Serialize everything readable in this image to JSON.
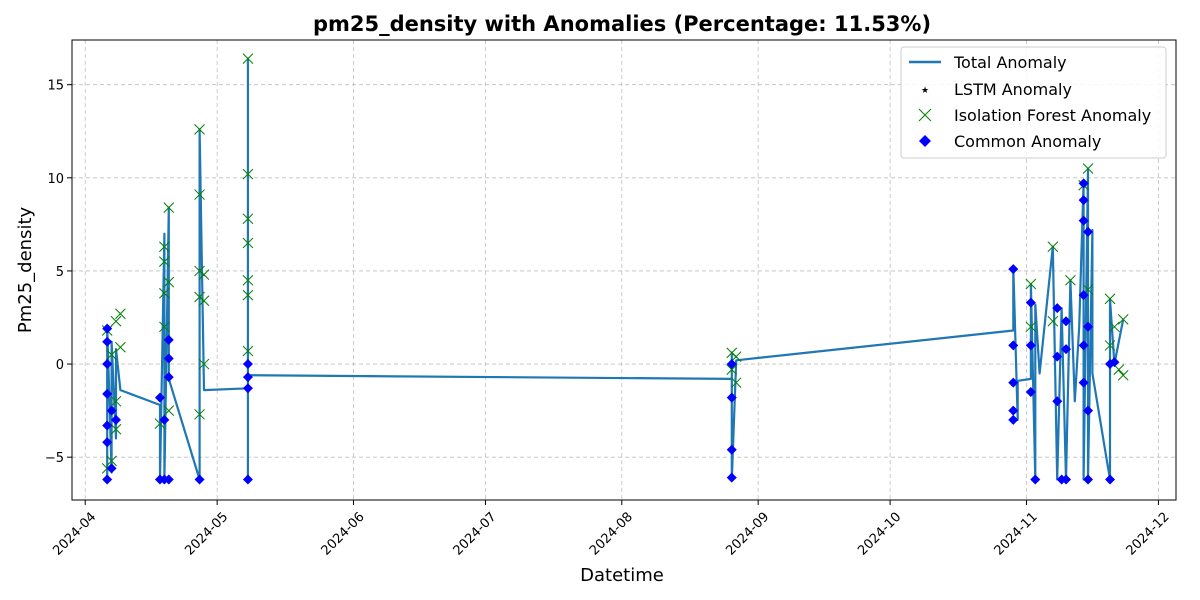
{
  "colors": {
    "total_line": "#1f77b4",
    "lstm": "#ff0000",
    "isolation_forest": "#008000",
    "common": "#0000ff",
    "grid": "#b0b0b0"
  },
  "chart_data": {
    "type": "line",
    "title": "pm25_density with Anomalies (Percentage: 11.53%)",
    "xlabel": "Datetime",
    "ylabel": "Pm25_density",
    "x_axis_type": "date",
    "xlim": [
      "2024-03-29",
      "2024-12-05"
    ],
    "ylim": [
      -7.3,
      17.4
    ],
    "x_ticks": [
      "2024-04",
      "2024-05",
      "2024-06",
      "2024-07",
      "2024-08",
      "2024-09",
      "2024-10",
      "2024-11",
      "2024-12"
    ],
    "y_ticks": [
      -5,
      0,
      5,
      10,
      15
    ],
    "grid": true,
    "legend_position": "top-right",
    "legend": [
      "Total Anomaly",
      "LSTM Anomaly",
      "Isolation Forest Anomaly",
      "Common Anomaly"
    ],
    "series": [
      {
        "name": "Total Anomaly",
        "style": "line",
        "points": [
          [
            "2024-04-06",
            -6.2
          ],
          [
            "2024-04-06",
            2.0
          ],
          [
            "2024-04-07",
            -5.8
          ],
          [
            "2024-04-07",
            1.2
          ],
          [
            "2024-04-08",
            -4.0
          ],
          [
            "2024-04-08",
            0.8
          ],
          [
            "2024-04-09",
            -1.4
          ],
          [
            "2024-04-18",
            -2.2
          ],
          [
            "2024-04-18",
            -6.2
          ],
          [
            "2024-04-19",
            7.0
          ],
          [
            "2024-04-19",
            -6.2
          ],
          [
            "2024-04-20",
            8.4
          ],
          [
            "2024-04-20",
            -0.8
          ],
          [
            "2024-04-27",
            -6.2
          ],
          [
            "2024-04-27",
            12.6
          ],
          [
            "2024-04-28",
            -1.4
          ],
          [
            "2024-05-08",
            -1.3
          ],
          [
            "2024-05-08",
            16.4
          ],
          [
            "2024-05-08",
            -6.2
          ],
          [
            "2024-05-08",
            -0.6
          ],
          [
            "2024-08-26",
            -0.8
          ],
          [
            "2024-08-26",
            0.5
          ],
          [
            "2024-08-26",
            -6.2
          ],
          [
            "2024-08-27",
            0.2
          ],
          [
            "2024-10-29",
            1.8
          ],
          [
            "2024-10-29",
            5.2
          ],
          [
            "2024-10-30",
            -3.0
          ],
          [
            "2024-10-30",
            -0.9
          ],
          [
            "2024-11-02",
            -0.8
          ],
          [
            "2024-11-02",
            4.3
          ],
          [
            "2024-11-03",
            -6.2
          ],
          [
            "2024-11-03",
            3.2
          ],
          [
            "2024-11-04",
            -0.5
          ],
          [
            "2024-11-07",
            6.3
          ],
          [
            "2024-11-08",
            -6.2
          ],
          [
            "2024-11-09",
            3.0
          ],
          [
            "2024-11-10",
            -6.2
          ],
          [
            "2024-11-11",
            4.5
          ],
          [
            "2024-11-12",
            -2.0
          ],
          [
            "2024-11-13",
            2.0
          ],
          [
            "2024-11-14",
            9.8
          ],
          [
            "2024-11-14",
            -6.2
          ],
          [
            "2024-11-15",
            10.5
          ],
          [
            "2024-11-15",
            -6.2
          ],
          [
            "2024-11-16",
            7.2
          ],
          [
            "2024-11-16",
            -0.5
          ],
          [
            "2024-11-20",
            -6.2
          ],
          [
            "2024-11-20",
            3.5
          ],
          [
            "2024-11-21",
            0.0
          ],
          [
            "2024-11-23",
            2.4
          ]
        ]
      },
      {
        "name": "LSTM Anomaly",
        "style": "marker",
        "points": []
      },
      {
        "name": "Isolation Forest Anomaly",
        "style": "marker",
        "points": [
          [
            "2024-04-06",
            1.8
          ],
          [
            "2024-04-06",
            -5.6
          ],
          [
            "2024-04-07",
            -5.2
          ],
          [
            "2024-04-07",
            0.5
          ],
          [
            "2024-04-08",
            -3.5
          ],
          [
            "2024-04-08",
            -2.0
          ],
          [
            "2024-04-08",
            2.3
          ],
          [
            "2024-04-09",
            0.9
          ],
          [
            "2024-04-09",
            2.7
          ],
          [
            "2024-04-18",
            -3.2
          ],
          [
            "2024-04-19",
            2.0
          ],
          [
            "2024-04-19",
            3.8
          ],
          [
            "2024-04-19",
            5.5
          ],
          [
            "2024-04-19",
            6.3
          ],
          [
            "2024-04-20",
            8.4
          ],
          [
            "2024-04-20",
            4.4
          ],
          [
            "2024-04-20",
            -2.5
          ],
          [
            "2024-04-27",
            12.6
          ],
          [
            "2024-04-27",
            9.1
          ],
          [
            "2024-04-27",
            5.0
          ],
          [
            "2024-04-27",
            3.6
          ],
          [
            "2024-04-28",
            4.8
          ],
          [
            "2024-04-28",
            3.4
          ],
          [
            "2024-04-28",
            0.0
          ],
          [
            "2024-04-27",
            -2.7
          ],
          [
            "2024-05-08",
            16.4
          ],
          [
            "2024-05-08",
            10.2
          ],
          [
            "2024-05-08",
            7.8
          ],
          [
            "2024-05-08",
            6.5
          ],
          [
            "2024-05-08",
            4.5
          ],
          [
            "2024-05-08",
            3.7
          ],
          [
            "2024-05-08",
            0.7
          ],
          [
            "2024-08-26",
            0.6
          ],
          [
            "2024-08-26",
            -0.3
          ],
          [
            "2024-08-27",
            0.4
          ],
          [
            "2024-08-27",
            -1.0
          ],
          [
            "2024-11-02",
            4.3
          ],
          [
            "2024-11-02",
            2.0
          ],
          [
            "2024-11-07",
            6.3
          ],
          [
            "2024-11-07",
            2.3
          ],
          [
            "2024-11-11",
            4.5
          ],
          [
            "2024-11-14",
            9.6
          ],
          [
            "2024-11-15",
            10.5
          ],
          [
            "2024-11-15",
            4.0
          ],
          [
            "2024-11-20",
            3.5
          ],
          [
            "2024-11-20",
            1.0
          ],
          [
            "2024-11-21",
            2.0
          ],
          [
            "2024-11-23",
            2.4
          ],
          [
            "2024-11-23",
            -0.6
          ],
          [
            "2024-11-22",
            -0.3
          ]
        ]
      },
      {
        "name": "Common Anomaly",
        "style": "marker",
        "points": [
          [
            "2024-04-06",
            1.9
          ],
          [
            "2024-04-06",
            1.2
          ],
          [
            "2024-04-06",
            0.0
          ],
          [
            "2024-04-06",
            -1.6
          ],
          [
            "2024-04-06",
            -3.3
          ],
          [
            "2024-04-06",
            -4.2
          ],
          [
            "2024-04-06",
            -6.2
          ],
          [
            "2024-04-07",
            -5.6
          ],
          [
            "2024-04-07",
            -2.5
          ],
          [
            "2024-04-08",
            -3.0
          ],
          [
            "2024-04-18",
            -6.2
          ],
          [
            "2024-04-18",
            -1.8
          ],
          [
            "2024-04-19",
            -3.0
          ],
          [
            "2024-04-19",
            -6.2
          ],
          [
            "2024-04-20",
            1.3
          ],
          [
            "2024-04-20",
            0.3
          ],
          [
            "2024-04-20",
            -0.7
          ],
          [
            "2024-04-20",
            -6.2
          ],
          [
            "2024-04-27",
            -6.2
          ],
          [
            "2024-05-08",
            0.0
          ],
          [
            "2024-05-08",
            -0.7
          ],
          [
            "2024-05-08",
            -1.3
          ],
          [
            "2024-05-08",
            -6.2
          ],
          [
            "2024-08-26",
            0.0
          ],
          [
            "2024-08-26",
            -1.8
          ],
          [
            "2024-08-26",
            -4.6
          ],
          [
            "2024-08-26",
            -6.1
          ],
          [
            "2024-10-29",
            5.1
          ],
          [
            "2024-10-29",
            1.0
          ],
          [
            "2024-10-29",
            -1.0
          ],
          [
            "2024-10-29",
            -2.5
          ],
          [
            "2024-10-29",
            -3.0
          ],
          [
            "2024-11-02",
            3.3
          ],
          [
            "2024-11-02",
            1.0
          ],
          [
            "2024-11-02",
            -1.5
          ],
          [
            "2024-11-03",
            -6.2
          ],
          [
            "2024-11-08",
            3.0
          ],
          [
            "2024-11-08",
            0.4
          ],
          [
            "2024-11-08",
            -2.0
          ],
          [
            "2024-11-09",
            -6.2
          ],
          [
            "2024-11-10",
            2.3
          ],
          [
            "2024-11-10",
            0.8
          ],
          [
            "2024-11-10",
            -6.2
          ],
          [
            "2024-11-14",
            9.7
          ],
          [
            "2024-11-14",
            8.8
          ],
          [
            "2024-11-14",
            7.7
          ],
          [
            "2024-11-14",
            3.7
          ],
          [
            "2024-11-14",
            1.0
          ],
          [
            "2024-11-14",
            -1.0
          ],
          [
            "2024-11-15",
            7.1
          ],
          [
            "2024-11-15",
            2.0
          ],
          [
            "2024-11-15",
            -2.5
          ],
          [
            "2024-11-15",
            -6.2
          ],
          [
            "2024-11-20",
            -6.2
          ],
          [
            "2024-11-20",
            0.0
          ],
          [
            "2024-11-21",
            0.1
          ]
        ]
      }
    ]
  }
}
